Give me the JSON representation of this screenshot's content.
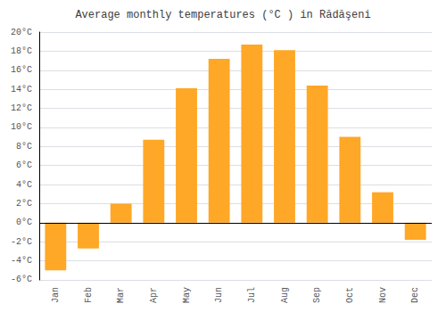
{
  "chart_data": {
    "type": "bar",
    "title": "Average monthly temperatures (°C ) in Rădăşeni",
    "categories": [
      "Jan",
      "Feb",
      "Mar",
      "Apr",
      "May",
      "Jun",
      "Jul",
      "Aug",
      "Sep",
      "Oct",
      "Nov",
      "Dec"
    ],
    "values": [
      -5.0,
      -2.7,
      2.0,
      8.7,
      14.1,
      17.2,
      18.7,
      18.1,
      14.4,
      9.0,
      3.2,
      -1.8
    ],
    "color": "#FFA726",
    "ylim": [
      -6,
      20
    ],
    "yticks": [
      {
        "value": -6,
        "label": "-6°C"
      },
      {
        "value": -4,
        "label": "-4°C"
      },
      {
        "value": -2,
        "label": "-2°C"
      },
      {
        "value": 0,
        "label": "0°C"
      },
      {
        "value": 2,
        "label": "2°C"
      },
      {
        "value": 4,
        "label": "4°C"
      },
      {
        "value": 6,
        "label": "6°C"
      },
      {
        "value": 8,
        "label": "8°C"
      },
      {
        "value": 10,
        "label": "10°C"
      },
      {
        "value": 12,
        "label": "12°C"
      },
      {
        "value": 14,
        "label": "14°C"
      },
      {
        "value": 16,
        "label": "16°C"
      },
      {
        "value": 18,
        "label": "18°C"
      },
      {
        "value": 20,
        "label": "20°C"
      }
    ],
    "grid": true
  }
}
